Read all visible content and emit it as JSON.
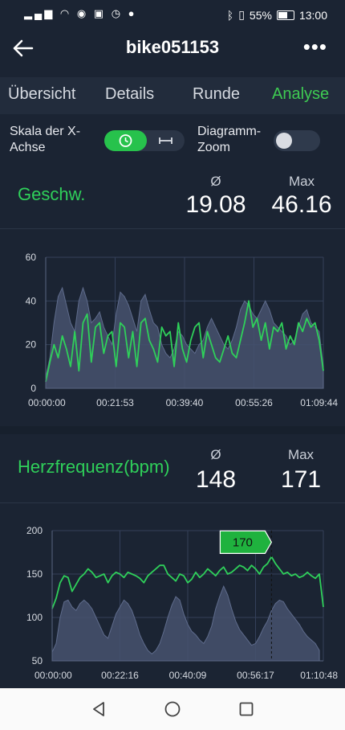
{
  "status_bar": {
    "left_icons": [
      "signal-icon",
      "wifi-icon",
      "eye-icon",
      "nfc-icon",
      "alarm-icon",
      "soccer-icon"
    ],
    "battery": "55%",
    "time": "13:00"
  },
  "app_bar": {
    "title": "bike051153"
  },
  "tabs": [
    {
      "label": "Übersicht",
      "active": false
    },
    {
      "label": "Details",
      "active": false
    },
    {
      "label": "Runde",
      "active": false
    },
    {
      "label": "Analyse",
      "active": true
    }
  ],
  "settings": {
    "x_axis_label": "Skala der X-Achse",
    "x_axis_line1": "Skala der X-",
    "x_axis_line2": "Achse",
    "zoom_line1": "Diagramm-",
    "zoom_line2": "Zoom",
    "zoom_enabled": false,
    "x_axis_mode": "time"
  },
  "speed": {
    "title": "Geschw.",
    "avg_label": "Ø",
    "max_label": "Max",
    "avg": "19.08",
    "max": "46.16"
  },
  "heart": {
    "title": "Herzfrequenz(bpm)",
    "avg_label": "Ø",
    "max_label": "Max",
    "avg": "148",
    "max": "171",
    "tooltip": "170"
  },
  "colors": {
    "accent": "#2fd05a",
    "background": "#1b2433",
    "area": "#4b5775"
  },
  "chart_data": [
    {
      "type": "line",
      "title": "Geschw.",
      "x_ticks": [
        "00:00:00",
        "00:21:53",
        "00:39:40",
        "00:55:26",
        "01:09:44"
      ],
      "y_ticks": [
        0,
        20,
        40,
        60
      ],
      "ylim": [
        0,
        60
      ],
      "series": [
        {
          "values": [
            3,
            12,
            20,
            14,
            24,
            18,
            10,
            26,
            8,
            30,
            34,
            12,
            28,
            30,
            16,
            24,
            26,
            10,
            30,
            28,
            14,
            26,
            10,
            30,
            32,
            22,
            18,
            12,
            28,
            24,
            26,
            10,
            30,
            18,
            12,
            22,
            28,
            30,
            14,
            26,
            20,
            14,
            12,
            18,
            24,
            16,
            14,
            22,
            30,
            40,
            28,
            32,
            22,
            30,
            18,
            28,
            26,
            30,
            18,
            24,
            20,
            30,
            26,
            32,
            28,
            30,
            22,
            8
          ]
        },
        {
          "values": [
            5,
            14,
            30,
            42,
            46,
            38,
            30,
            26,
            40,
            46,
            40,
            30,
            32,
            35,
            28,
            24,
            20,
            34,
            44,
            42,
            38,
            32,
            26,
            40,
            43,
            36,
            30,
            28,
            20,
            16,
            14,
            18,
            26,
            24,
            20,
            18,
            16,
            20,
            22,
            28,
            32,
            28,
            24,
            20,
            18,
            22,
            28,
            36,
            40,
            38,
            34,
            32,
            36,
            40,
            36,
            30,
            28,
            26,
            24,
            20,
            22,
            28,
            34,
            36,
            30,
            28,
            26,
            10
          ]
        }
      ]
    },
    {
      "type": "line",
      "title": "Herzfrequenz(bpm)",
      "x_ticks": [
        "00:00:00",
        "00:22:16",
        "00:40:09",
        "00:56:17",
        "01:10:48"
      ],
      "y_ticks": [
        50,
        100,
        150,
        200
      ],
      "ylim": [
        50,
        200
      ],
      "series": [
        {
          "values": [
            110,
            122,
            140,
            148,
            146,
            130,
            138,
            146,
            150,
            156,
            152,
            146,
            148,
            150,
            140,
            148,
            152,
            150,
            146,
            152,
            150,
            148,
            145,
            140,
            148,
            152,
            156,
            160,
            160,
            150,
            146,
            142,
            150,
            148,
            140,
            144,
            152,
            146,
            150,
            156,
            152,
            148,
            154,
            158,
            150,
            152,
            156,
            160,
            158,
            154,
            160,
            156,
            150,
            158,
            162,
            170,
            162,
            156,
            150,
            152,
            148,
            150,
            146,
            148,
            152,
            148,
            145,
            150,
            112
          ]
        },
        {
          "values": [
            60,
            70,
            100,
            118,
            120,
            112,
            108,
            116,
            120,
            116,
            110,
            100,
            90,
            80,
            76,
            90,
            104,
            112,
            120,
            116,
            108,
            95,
            80,
            70,
            62,
            58,
            62,
            70,
            84,
            100,
            114,
            124,
            120,
            104,
            92,
            84,
            80,
            74,
            70,
            78,
            90,
            110,
            124,
            136,
            126,
            110,
            96,
            86,
            80,
            74,
            68,
            70,
            78,
            88,
            96,
            108,
            116,
            120,
            118,
            110,
            104,
            98,
            92,
            84,
            78,
            74,
            70,
            62
          ]
        }
      ],
      "tooltip_value": 170
    }
  ]
}
